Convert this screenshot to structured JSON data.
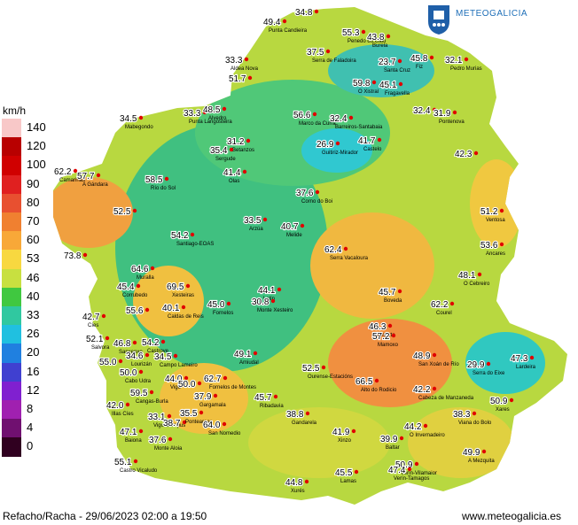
{
  "brand": {
    "name": "METEOGALICIA"
  },
  "legend": {
    "unit": "km/h",
    "levels": [
      {
        "label": "140",
        "color": "#f8c8c8"
      },
      {
        "label": "120",
        "color": "#b80000"
      },
      {
        "label": "100",
        "color": "#d00000"
      },
      {
        "label": "90",
        "color": "#e02020"
      },
      {
        "label": "80",
        "color": "#e85030"
      },
      {
        "label": "70",
        "color": "#f08030"
      },
      {
        "label": "60",
        "color": "#f8a838"
      },
      {
        "label": "53",
        "color": "#f8d840"
      },
      {
        "label": "46",
        "color": "#c8e040"
      },
      {
        "label": "40",
        "color": "#40c840"
      },
      {
        "label": "33",
        "color": "#30c8a0"
      },
      {
        "label": "26",
        "color": "#20c0e0"
      },
      {
        "label": "20",
        "color": "#2080e0"
      },
      {
        "label": "16",
        "color": "#4040d0"
      },
      {
        "label": "12",
        "color": "#8020d0"
      },
      {
        "label": "8",
        "color": "#a020b0"
      },
      {
        "label": "4",
        "color": "#701070"
      },
      {
        "label": "0",
        "color": "#300020"
      }
    ]
  },
  "stations": [
    {
      "value": "49.4",
      "name": "Punta Candieira"
    },
    {
      "value": "34.8",
      "name": ""
    },
    {
      "value": "55.3",
      "name": "Penedo do Galo"
    },
    {
      "value": "43.8",
      "name": "Burela"
    },
    {
      "value": "33.3",
      "name": "Aldea Nova"
    },
    {
      "value": "37.5",
      "name": "Serra de Faladoira"
    },
    {
      "value": "23.7",
      "name": "Santa Cruz"
    },
    {
      "value": "45.8",
      "name": "Fiz"
    },
    {
      "value": "32.1",
      "name": "Pedro Murias"
    },
    {
      "value": "51.7",
      "name": ""
    },
    {
      "value": "59.8",
      "name": "O Xistral"
    },
    {
      "value": "45.1",
      "name": "Fragavella"
    },
    {
      "value": "34.5",
      "name": "Mabegondo"
    },
    {
      "value": "33.3",
      "name": "Punta Langosteira"
    },
    {
      "value": "48.5",
      "name": "Alvedro"
    },
    {
      "value": "56.6",
      "name": "Marco da Curra"
    },
    {
      "value": "32.4",
      "name": "Barreiros-Santabaia"
    },
    {
      "value": "32.4",
      "name": ""
    },
    {
      "value": "31.9",
      "name": "Pontenova"
    },
    {
      "value": "31.2",
      "name": "Betanzos"
    },
    {
      "value": "35.4",
      "name": "Sergude"
    },
    {
      "value": "26.9",
      "name": "Guitiriz-Mirador"
    },
    {
      "value": "41.7",
      "name": "Castelo"
    },
    {
      "value": "42.3",
      "name": ""
    },
    {
      "value": "62.2",
      "name": "Camariñas"
    },
    {
      "value": "57.7",
      "name": "A Gándara"
    },
    {
      "value": "58.5",
      "name": "Río do Sol"
    },
    {
      "value": "41.4",
      "name": "Olas"
    },
    {
      "value": "37.6",
      "name": "Corno do Boi"
    },
    {
      "value": "51.2",
      "name": "Ventosa"
    },
    {
      "value": "52.5",
      "name": ""
    },
    {
      "value": "33.5",
      "name": "Arzúa"
    },
    {
      "value": "40.7",
      "name": "Melide"
    },
    {
      "value": "54.2",
      "name": "Santiago-EOAS"
    },
    {
      "value": "53.6",
      "name": "Ancares"
    },
    {
      "value": "73.8",
      "name": ""
    },
    {
      "value": "62.4",
      "name": "Serra Vacaloura"
    },
    {
      "value": "64.6",
      "name": "Muralla"
    },
    {
      "value": "48.1",
      "name": "O Cebreiro"
    },
    {
      "value": "45.4",
      "name": "Corrubedo"
    },
    {
      "value": "69.5",
      "name": "Xesteiras"
    },
    {
      "value": "44.1",
      "name": "Lalín"
    },
    {
      "value": "45.7",
      "name": "Boveda"
    },
    {
      "value": "62.2",
      "name": "Courel"
    },
    {
      "value": "40.1",
      "name": "Caldas de Reis"
    },
    {
      "value": "45.0",
      "name": "Fornelos"
    },
    {
      "value": "30.8",
      "name": "Monte Xesteiro"
    },
    {
      "value": "55.6",
      "name": ""
    },
    {
      "value": "42.7",
      "name": "Cíes"
    },
    {
      "value": "46.3",
      "name": "Monforte"
    },
    {
      "value": "57.2",
      "name": "Mamoxo"
    },
    {
      "value": "52.1",
      "name": "Salvora"
    },
    {
      "value": "46.8",
      "name": "Sanxenxo"
    },
    {
      "value": "54.2",
      "name": "Castrove"
    },
    {
      "value": "49.1",
      "name": "Amiudal"
    },
    {
      "value": "48.9",
      "name": "San Xoán de Río"
    },
    {
      "value": "29.9",
      "name": "Serra do Eixe"
    },
    {
      "value": "47.3",
      "name": "Lardeira"
    },
    {
      "value": "34.6",
      "name": "Lourizán"
    },
    {
      "value": "34.5",
      "name": "Campo Lameiro"
    },
    {
      "value": "55.0",
      "name": ""
    },
    {
      "value": "52.5",
      "name": "Ourense-Estacións"
    },
    {
      "value": "66.5",
      "name": "Alto do Rodicio"
    },
    {
      "value": "50.0",
      "name": "Cabo Udra"
    },
    {
      "value": "44.0",
      "name": "Vigo"
    },
    {
      "value": "50.0",
      "name": ""
    },
    {
      "value": "62.7",
      "name": "Fornelos de Montes"
    },
    {
      "value": "37.9",
      "name": "Gargamala"
    },
    {
      "value": "42.2",
      "name": "Cabeza de Manzaneda"
    },
    {
      "value": "59.5",
      "name": "Cangas-Burla"
    },
    {
      "value": "45.7",
      "name": "Ribadavia"
    },
    {
      "value": "42.0",
      "name": "Illas Cíes"
    },
    {
      "value": "33.1",
      "name": "Vigo-Campus"
    },
    {
      "value": "38.7",
      "name": ""
    },
    {
      "value": "35.5",
      "name": "Ponteareas"
    },
    {
      "value": "64.0",
      "name": "San Nomedio"
    },
    {
      "value": "38.8",
      "name": "Gandarela"
    },
    {
      "value": "38.3",
      "name": "Viana do Bolo"
    },
    {
      "value": "50.9",
      "name": "Xares"
    },
    {
      "value": "47.1",
      "name": "Baiona"
    },
    {
      "value": "41.9",
      "name": "Xinzo"
    },
    {
      "value": "44.2",
      "name": "O Invernadeiro"
    },
    {
      "value": "37.6",
      "name": "Monte Aloia"
    },
    {
      "value": "39.9",
      "name": "Baltar"
    },
    {
      "value": "49.9",
      "name": "A Mezquita"
    },
    {
      "value": "55.1",
      "name": "Castro Vicaludo"
    },
    {
      "value": "50.9",
      "name": "Verín-Vilamaior"
    },
    {
      "value": "47.4",
      "name": "Verín-Tamagos"
    },
    {
      "value": "45.5",
      "name": "Lamas"
    },
    {
      "value": "44.8",
      "name": "Xurés"
    }
  ],
  "footer": {
    "caption": "Refacho/Racha - 29/06/2023 02:00 a 19:50",
    "site": "www.meteogalicia.es"
  }
}
